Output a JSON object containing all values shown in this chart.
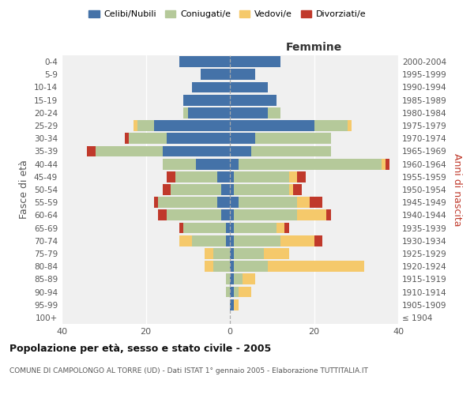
{
  "age_groups": [
    "100+",
    "95-99",
    "90-94",
    "85-89",
    "80-84",
    "75-79",
    "70-74",
    "65-69",
    "60-64",
    "55-59",
    "50-54",
    "45-49",
    "40-44",
    "35-39",
    "30-34",
    "25-29",
    "20-24",
    "15-19",
    "10-14",
    "5-9",
    "0-4"
  ],
  "birth_years": [
    "≤ 1904",
    "1905-1909",
    "1910-1914",
    "1915-1919",
    "1920-1924",
    "1925-1929",
    "1930-1934",
    "1935-1939",
    "1940-1944",
    "1945-1949",
    "1950-1954",
    "1955-1959",
    "1960-1964",
    "1965-1969",
    "1970-1974",
    "1975-1979",
    "1980-1984",
    "1985-1989",
    "1990-1994",
    "1995-1999",
    "2000-2004"
  ],
  "male": {
    "celibi": [
      0,
      0,
      0,
      0,
      0,
      0,
      1,
      1,
      2,
      3,
      2,
      3,
      8,
      16,
      15,
      18,
      10,
      11,
      9,
      7,
      12
    ],
    "coniugati": [
      0,
      0,
      1,
      1,
      4,
      4,
      8,
      10,
      13,
      14,
      12,
      10,
      8,
      16,
      9,
      4,
      1,
      0,
      0,
      0,
      0
    ],
    "vedovi": [
      0,
      0,
      0,
      0,
      2,
      2,
      3,
      0,
      0,
      0,
      0,
      0,
      0,
      0,
      0,
      1,
      0,
      0,
      0,
      0,
      0
    ],
    "divorziati": [
      0,
      0,
      0,
      0,
      0,
      0,
      0,
      1,
      2,
      1,
      2,
      2,
      0,
      2,
      1,
      0,
      0,
      0,
      0,
      0,
      0
    ]
  },
  "female": {
    "nubili": [
      0,
      1,
      1,
      1,
      1,
      1,
      1,
      1,
      1,
      2,
      1,
      1,
      2,
      5,
      6,
      20,
      9,
      11,
      9,
      6,
      12
    ],
    "coniugate": [
      0,
      0,
      1,
      2,
      8,
      7,
      11,
      10,
      15,
      14,
      13,
      13,
      34,
      19,
      18,
      8,
      3,
      0,
      0,
      0,
      0
    ],
    "vedove": [
      0,
      1,
      3,
      3,
      23,
      6,
      8,
      2,
      7,
      3,
      1,
      2,
      1,
      0,
      0,
      1,
      0,
      0,
      0,
      0,
      0
    ],
    "divorziate": [
      0,
      0,
      0,
      0,
      0,
      0,
      2,
      1,
      1,
      3,
      2,
      2,
      1,
      0,
      0,
      0,
      0,
      0,
      0,
      0,
      0
    ]
  },
  "colors": {
    "celibi": "#4472a8",
    "coniugati": "#b5c99a",
    "vedovi": "#f5c96b",
    "divorziati": "#c0392b"
  },
  "xlim": 40,
  "title": "Popolazione per età, sesso e stato civile - 2005",
  "subtitle": "COMUNE DI CAMPOLONGO AL TORRE (UD) - Dati ISTAT 1° gennaio 2005 - Elaborazione TUTTITALIA.IT",
  "ylabel_left": "Fasce di età",
  "ylabel_right": "Anni di nascita",
  "legend_labels": [
    "Celibi/Nubili",
    "Coniugati/e",
    "Vedovi/e",
    "Divorziati/e"
  ],
  "bg_color": "#f0f0f0",
  "bar_height": 0.85
}
